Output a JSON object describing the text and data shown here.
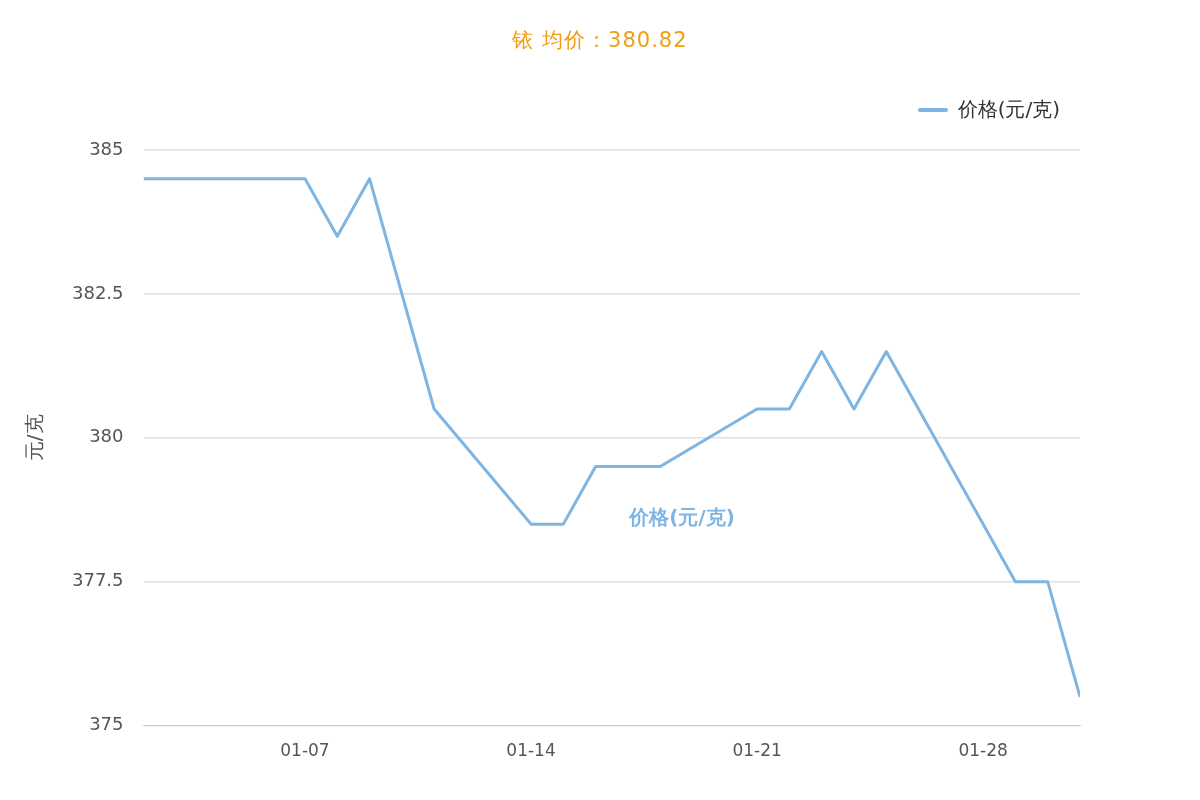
{
  "chart_data": {
    "type": "line",
    "title": "铱 均价：380.82",
    "ylabel": "元/克",
    "x": [
      "--01-02",
      "--01-07",
      "--01-08",
      "--01-09",
      "--01-11",
      "--01-14",
      "--01-15",
      "--01-16",
      "--01-18",
      "--01-21",
      "--01-22",
      "--01-23",
      "--01-24",
      "--01-25",
      "--01-29",
      "--01-30",
      "--01-31"
    ],
    "series": [
      {
        "name": "价格(元/克)",
        "color": "#7eb5e3",
        "values": [
          384.5,
          384.5,
          383.5,
          384.5,
          380.5,
          378.5,
          378.5,
          379.5,
          379.5,
          380.5,
          380.5,
          381.5,
          380.5,
          381.5,
          377.5,
          377.5,
          375.5
        ]
      }
    ],
    "xlim": [
      "--01-02",
      "--01-31"
    ],
    "xticks": [
      {
        "value": "--01-07",
        "label": "01-07"
      },
      {
        "value": "--01-14",
        "label": "01-14"
      },
      {
        "value": "--01-21",
        "label": "01-21"
      },
      {
        "value": "--01-28",
        "label": "01-28"
      }
    ],
    "ylim": [
      375,
      385
    ],
    "yticks": [
      375,
      377.5,
      380,
      382.5,
      385
    ],
    "grid": "y",
    "legend": "top right",
    "marker": "none",
    "line_style": "solid",
    "annotations": [
      "价格(元/克)"
    ]
  }
}
